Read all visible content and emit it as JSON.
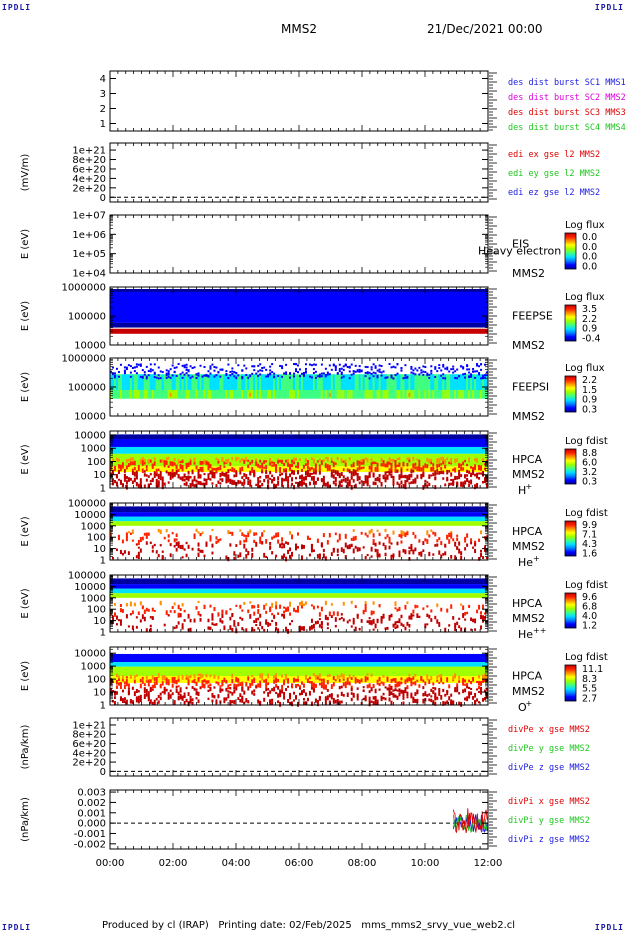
{
  "corners": {
    "top_left": "IPDLI",
    "top_right": "IPDLI",
    "bottom_left": "IPDLI",
    "bottom_right": "IPDLI"
  },
  "header": {
    "spacecraft": "MMS2",
    "datetime": "21/Dec/2021 00:00"
  },
  "footer": "Produced by cl (IRAP)   Printing date: 02/Feb/2025   mms_mms2_srvy_vue_web2.cl",
  "colors": {
    "blue": "#1c1ce0",
    "magenta": "#e000e0",
    "red": "#e00000",
    "green": "#1ec81e",
    "rainbow": [
      "#0000a0",
      "#0000ff",
      "#0080ff",
      "#00e0ff",
      "#40ff80",
      "#a0ff00",
      "#ffff00",
      "#ff9000",
      "#ff2000",
      "#c00000"
    ]
  },
  "chart_data": {
    "type": "panels",
    "x_ticks": [
      "00:00",
      "02:00",
      "04:00",
      "06:00",
      "08:00",
      "10:00",
      "12:00"
    ],
    "panels": [
      {
        "kind": "empty",
        "ticks": [
          "4",
          "3",
          "2",
          "1"
        ],
        "tickvals": [
          4,
          3,
          2,
          1
        ],
        "ylim": [
          0.5,
          4.5
        ],
        "ylabel": "",
        "legend": [
          {
            "text": "des dist burst SC1 MMS1",
            "color": "#1c1ce0"
          },
          {
            "text": "des dist burst SC2 MMS2",
            "color": "#e000e0"
          },
          {
            "text": "des dist burst SC3 MMS3",
            "color": "#e00000"
          },
          {
            "text": "des dist burst SC4 MMS4",
            "color": "#1ec81e"
          }
        ]
      },
      {
        "kind": "line0",
        "ticks": [
          "1e+21",
          "8e+20",
          "6e+20",
          "4e+20",
          "2e+20",
          "0"
        ],
        "tickvals": [
          1e+21,
          8e+20,
          6e+20,
          4e+20,
          2e+20,
          0
        ],
        "ylim": [
          -1e+20,
          1.15e+21
        ],
        "ylabel": "(mV/m)",
        "legend": [
          {
            "text": "edi ex gse l2 MMS2",
            "color": "#e00000"
          },
          {
            "text": "edi ey gse l2 MMS2",
            "color": "#1ec81e"
          },
          {
            "text": "edi ez gse l2 MMS2",
            "color": "#1c1ce0"
          }
        ]
      },
      {
        "kind": "spec_empty",
        "ticks": [
          "1e+07",
          "1e+06",
          "1e+05",
          "1e+04"
        ],
        "log": true,
        "ylim": [
          10000.0,
          10000000.0
        ],
        "ylabel": "E (eV)",
        "right": [
          "EIS",
          "MMS2"
        ],
        "overlay": "Heavy electron to",
        "colortitle": "Log flux",
        "colorvals": [
          "0.0",
          "0.0",
          "0.0",
          "0.0"
        ]
      },
      {
        "kind": "spec",
        "style": "feepse",
        "ticks": [
          "1000000",
          "100000",
          "10000"
        ],
        "log": true,
        "ylim": [
          10000.0,
          1000000.0
        ],
        "ylabel": "E (eV)",
        "right": [
          "FEEPSE",
          "MMS2"
        ],
        "colortitle": "Log flux",
        "colorvals": [
          "3.5",
          "2.2",
          "0.9",
          "-0.4"
        ]
      },
      {
        "kind": "spec",
        "style": "feepsi",
        "ticks": [
          "1000000",
          "100000",
          "10000"
        ],
        "log": true,
        "ylim": [
          10000.0,
          1000000.0
        ],
        "ylabel": "E (eV)",
        "right": [
          "FEEPSI",
          "MMS2"
        ],
        "colortitle": "Log flux",
        "colorvals": [
          "2.2",
          "1.5",
          "0.9",
          "0.3"
        ]
      },
      {
        "kind": "spec",
        "style": "hplus",
        "ticks": [
          "10000",
          "1000",
          "100",
          "10",
          "1"
        ],
        "log": true,
        "ylim": [
          1,
          20000.0
        ],
        "ylabel": "E (eV)",
        "right": [
          "HPCA",
          "MMS2"
        ],
        "species": "H",
        "sup": "+",
        "colortitle": "Log fdist",
        "colorvals": [
          "8.8",
          "6.0",
          "3.2",
          "0.3"
        ]
      },
      {
        "kind": "spec",
        "style": "heplus",
        "ticks": [
          "100000",
          "10000",
          "1000",
          "100",
          "10",
          "1"
        ],
        "log": true,
        "ylim": [
          1,
          100000.0
        ],
        "ylabel": "E (eV)",
        "right": [
          "HPCA",
          "MMS2"
        ],
        "species": "He",
        "sup": "+",
        "colortitle": "Log fdist",
        "colorvals": [
          "9.9",
          "7.1",
          "4.3",
          "1.6"
        ]
      },
      {
        "kind": "spec",
        "style": "hepp",
        "ticks": [
          "100000",
          "10000",
          "1000",
          "100",
          "10",
          "1"
        ],
        "log": true,
        "ylim": [
          1,
          100000.0
        ],
        "ylabel": "E (eV)",
        "right": [
          "HPCA",
          "MMS2"
        ],
        "species": "He",
        "sup": "++",
        "colortitle": "Log fdist",
        "colorvals": [
          "9.6",
          "6.8",
          "4.0",
          "1.2"
        ]
      },
      {
        "kind": "spec",
        "style": "oplus",
        "ticks": [
          "10000",
          "1000",
          "100",
          "10",
          "1"
        ],
        "log": true,
        "ylim": [
          1,
          30000.0
        ],
        "ylabel": "E (eV)",
        "right": [
          "HPCA",
          "MMS2"
        ],
        "species": "O",
        "sup": "+",
        "colortitle": "Log fdist",
        "colorvals": [
          "11.1",
          "8.3",
          "5.5",
          "2.7"
        ]
      },
      {
        "kind": "line0",
        "ticks": [
          "1e+21",
          "8e+20",
          "6e+20",
          "4e+20",
          "2e+20",
          "0"
        ],
        "tickvals": [
          1e+21,
          8e+20,
          6e+20,
          4e+20,
          2e+20,
          0
        ],
        "ylim": [
          -1e+20,
          1.15e+21
        ],
        "ylabel": "(nPa/km)",
        "legend": [
          {
            "text": "divPe x gse MMS2",
            "color": "#e00000"
          },
          {
            "text": "divPe y gse MMS2",
            "color": "#1ec81e"
          },
          {
            "text": "divPe z gse MMS2",
            "color": "#1c1ce0"
          }
        ]
      },
      {
        "kind": "divpi",
        "ticks": [
          "0.003",
          "0.002",
          "0.001",
          "0.000",
          "-0.001",
          "-0.002"
        ],
        "tickvals": [
          0.003,
          0.002,
          0.001,
          0,
          -0.001,
          -0.002
        ],
        "ylim": [
          -0.0025,
          0.0032
        ],
        "ylabel": "(nPa/km)",
        "legend": [
          {
            "text": "divPi x gse MMS2",
            "color": "#e00000"
          },
          {
            "text": "divPi y gse MMS2",
            "color": "#1ec81e"
          },
          {
            "text": "divPi z gse MMS2",
            "color": "#1c1ce0"
          }
        ],
        "burst_start_hours": 10.9
      }
    ]
  }
}
